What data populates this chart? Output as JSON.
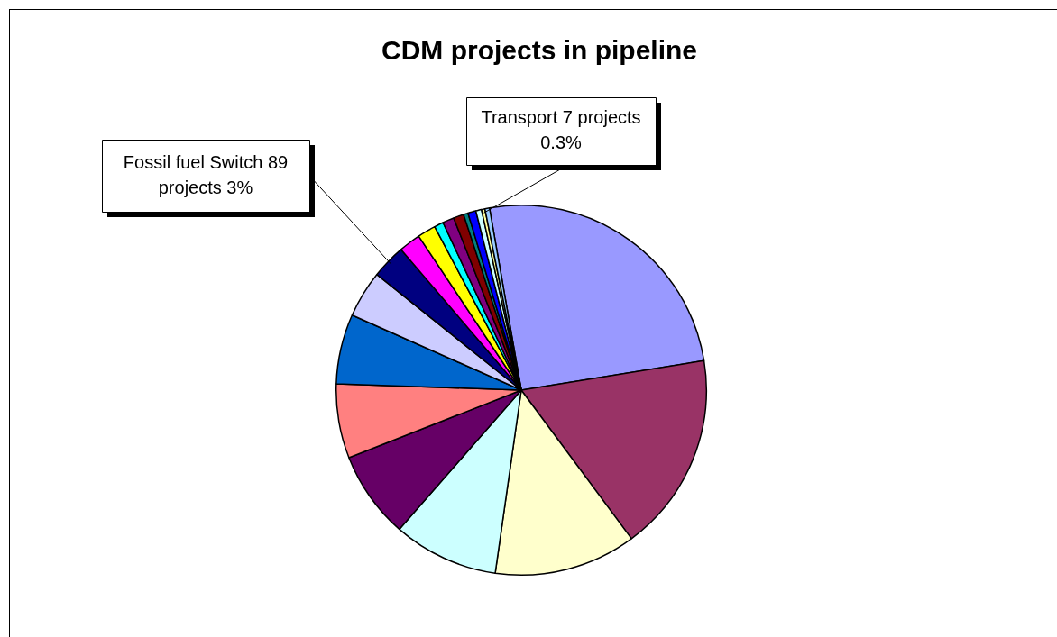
{
  "chart_data": {
    "type": "pie",
    "title": "CDM projects in pipeline",
    "categories": [
      null,
      null,
      null,
      null,
      null,
      null,
      null,
      null,
      "Fossil fuel Switch",
      null,
      null,
      null,
      null,
      null,
      null,
      null,
      null,
      "Transport",
      null
    ],
    "values": [
      25.2,
      17.4,
      12.4,
      9.2,
      7.6,
      6.5,
      6.1,
      4.1,
      3,
      1.9,
      1.6,
      0.8,
      1.0,
      0.9,
      0.4,
      0.7,
      0.5,
      0.3,
      0.4
    ],
    "value_labels": [
      null,
      null,
      null,
      null,
      null,
      null,
      null,
      null,
      "89 projects 3%",
      null,
      null,
      null,
      null,
      null,
      null,
      null,
      null,
      "7 projects 0.3%",
      null
    ],
    "colors": [
      "#9999ff",
      "#993366",
      "#ffffcc",
      "#ccffff",
      "#660066",
      "#ff8080",
      "#0066cc",
      "#ccccff",
      "#000080",
      "#ff00ff",
      "#ffff00",
      "#00ffff",
      "#800080",
      "#800000",
      "#008080",
      "#0000ff",
      "#ccffff",
      "#ffff99",
      "#99ccff"
    ],
    "legend": false
  }
}
